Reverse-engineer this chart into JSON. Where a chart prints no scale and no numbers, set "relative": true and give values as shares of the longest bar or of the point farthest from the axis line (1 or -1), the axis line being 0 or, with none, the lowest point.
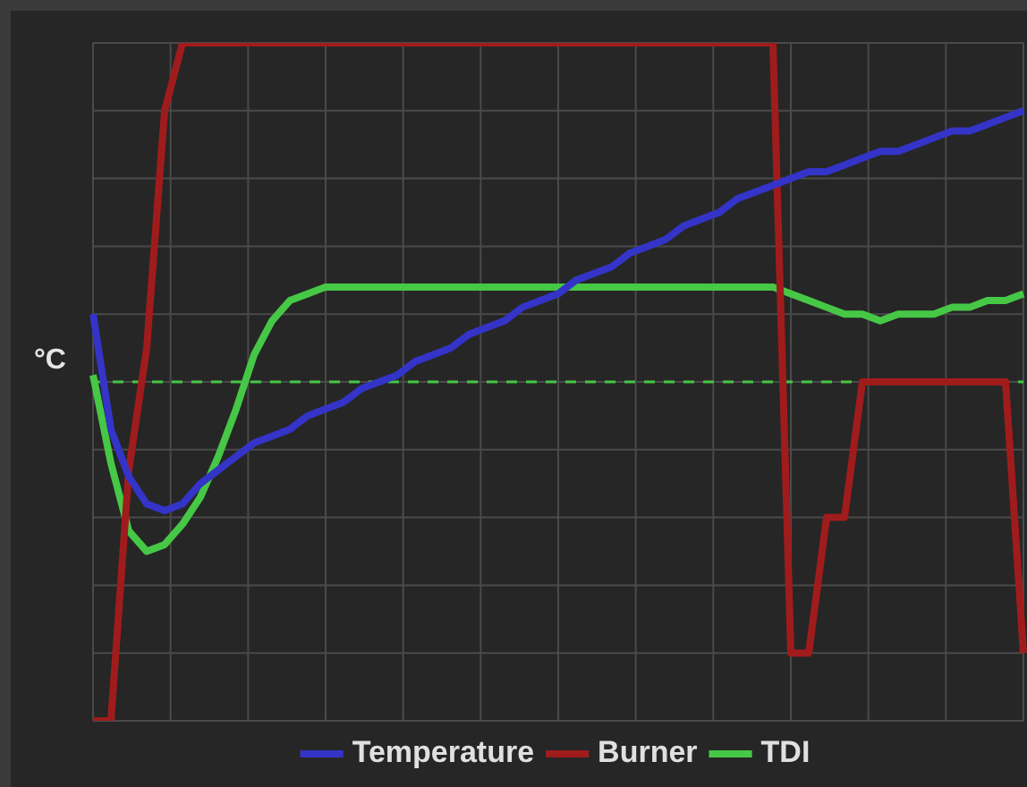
{
  "chart_data": {
    "type": "line",
    "relative": true,
    "ylabel": "°C",
    "grid": true,
    "legend": "bottom",
    "marker": "none",
    "line_style": "solid",
    "categories": [
      null,
      null,
      null,
      null,
      null,
      null,
      null,
      null,
      null,
      null,
      null,
      null,
      null,
      null,
      null,
      null,
      null,
      null,
      null,
      null,
      null,
      null,
      null,
      null,
      null,
      null,
      null,
      null,
      null,
      null,
      null,
      null,
      null,
      null,
      null,
      null,
      null,
      null,
      null,
      null,
      null,
      null,
      null,
      null,
      null,
      null,
      null,
      null,
      null,
      null,
      null,
      null,
      null
    ],
    "series": [
      {
        "name": "Temperature",
        "color": "#3434c8",
        "values": [
          0.6,
          0.43,
          0.36,
          0.32,
          0.31,
          0.32,
          0.35,
          0.37,
          0.39,
          0.41,
          0.42,
          0.43,
          0.45,
          0.46,
          0.47,
          0.49,
          0.5,
          0.51,
          0.53,
          0.54,
          0.55,
          0.57,
          0.58,
          0.59,
          0.61,
          0.62,
          0.63,
          0.65,
          0.66,
          0.67,
          0.69,
          0.7,
          0.71,
          0.73,
          0.74,
          0.75,
          0.77,
          0.78,
          0.79,
          0.8,
          0.81,
          0.81,
          0.82,
          0.83,
          0.84,
          0.84,
          0.85,
          0.86,
          0.87,
          0.87,
          0.88,
          0.89,
          0.9
        ]
      },
      {
        "name": "Burner",
        "color": "#a01c1c",
        "values": [
          0,
          0,
          0.37,
          0.55,
          0.9,
          1,
          1,
          1,
          1,
          1,
          1,
          1,
          1,
          1,
          1,
          1,
          1,
          1,
          1,
          1,
          1,
          1,
          1,
          1,
          1,
          1,
          1,
          1,
          1,
          1,
          1,
          1,
          1,
          1,
          1,
          1,
          1,
          1,
          1,
          0.1,
          0.1,
          0.3,
          0.3,
          0.5,
          0.5,
          0.5,
          0.5,
          0.5,
          0.5,
          0.5,
          0.5,
          0.5,
          0.1
        ]
      },
      {
        "name": "TDI",
        "color": "#46c846",
        "values": [
          0.51,
          0.38,
          0.28,
          0.25,
          0.26,
          0.29,
          0.33,
          0.39,
          0.46,
          0.54,
          0.59,
          0.62,
          0.63,
          0.64,
          0.64,
          0.64,
          0.64,
          0.64,
          0.64,
          0.64,
          0.64,
          0.64,
          0.64,
          0.64,
          0.64,
          0.64,
          0.64,
          0.64,
          0.64,
          0.64,
          0.64,
          0.64,
          0.64,
          0.64,
          0.64,
          0.64,
          0.64,
          0.64,
          0.64,
          0.63,
          0.62,
          0.61,
          0.6,
          0.6,
          0.59,
          0.6,
          0.6,
          0.6,
          0.61,
          0.61,
          0.62,
          0.62,
          0.63
        ]
      }
    ],
    "ref_lines": [
      {
        "axis": "y",
        "value": 0.5,
        "color": "#46c846",
        "line_style": "dashed"
      }
    ]
  }
}
